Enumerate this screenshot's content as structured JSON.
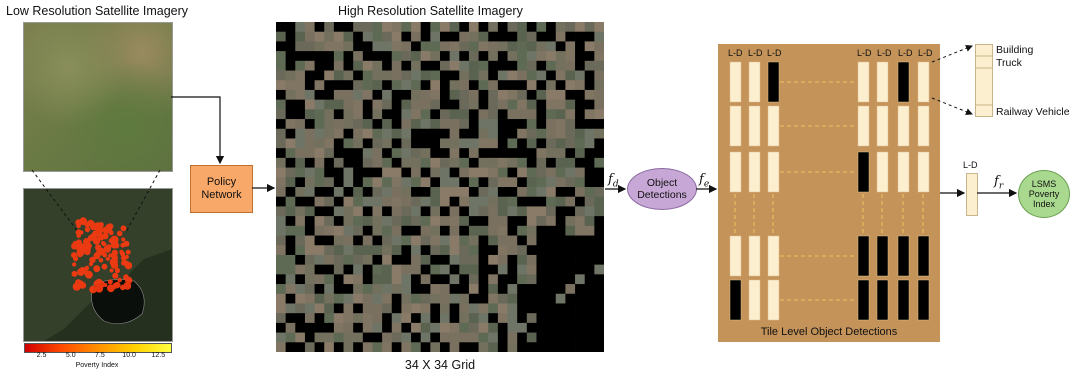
{
  "titles": {
    "low_res": "Low Resolution Satellite Imagery",
    "high_res": "High Resolution Satellite Imagery",
    "grid": "34 X 34 Grid",
    "tile_level": "Tile Level Object Detections"
  },
  "colorbar": {
    "ticks": [
      "2.5",
      "5.0",
      "7.5",
      "10.0",
      "12.5"
    ],
    "label": "Poverty Index"
  },
  "policy": {
    "line1": "Policy",
    "line2": "Network"
  },
  "object_detections": {
    "line1": "Object",
    "line2": "Detections"
  },
  "symbols": {
    "fd": "f",
    "fd_sub": "d",
    "fe": "f",
    "fe_sub": "e",
    "fr": "f",
    "fr_sub": "r"
  },
  "ld_label": "L-D",
  "legend_items": [
    "Building",
    "Truck",
    "Railway Vehicle"
  ],
  "lsms": {
    "line1": "LSMS",
    "line2": "Poverty",
    "line3": "Index"
  },
  "colors": {
    "policy": "#f8a868",
    "detections": "#c7a7d6",
    "lsms": "#a9d98f",
    "panel": "#c4935a",
    "tile": "#fcefcf",
    "dashed": "#f0c060"
  }
}
